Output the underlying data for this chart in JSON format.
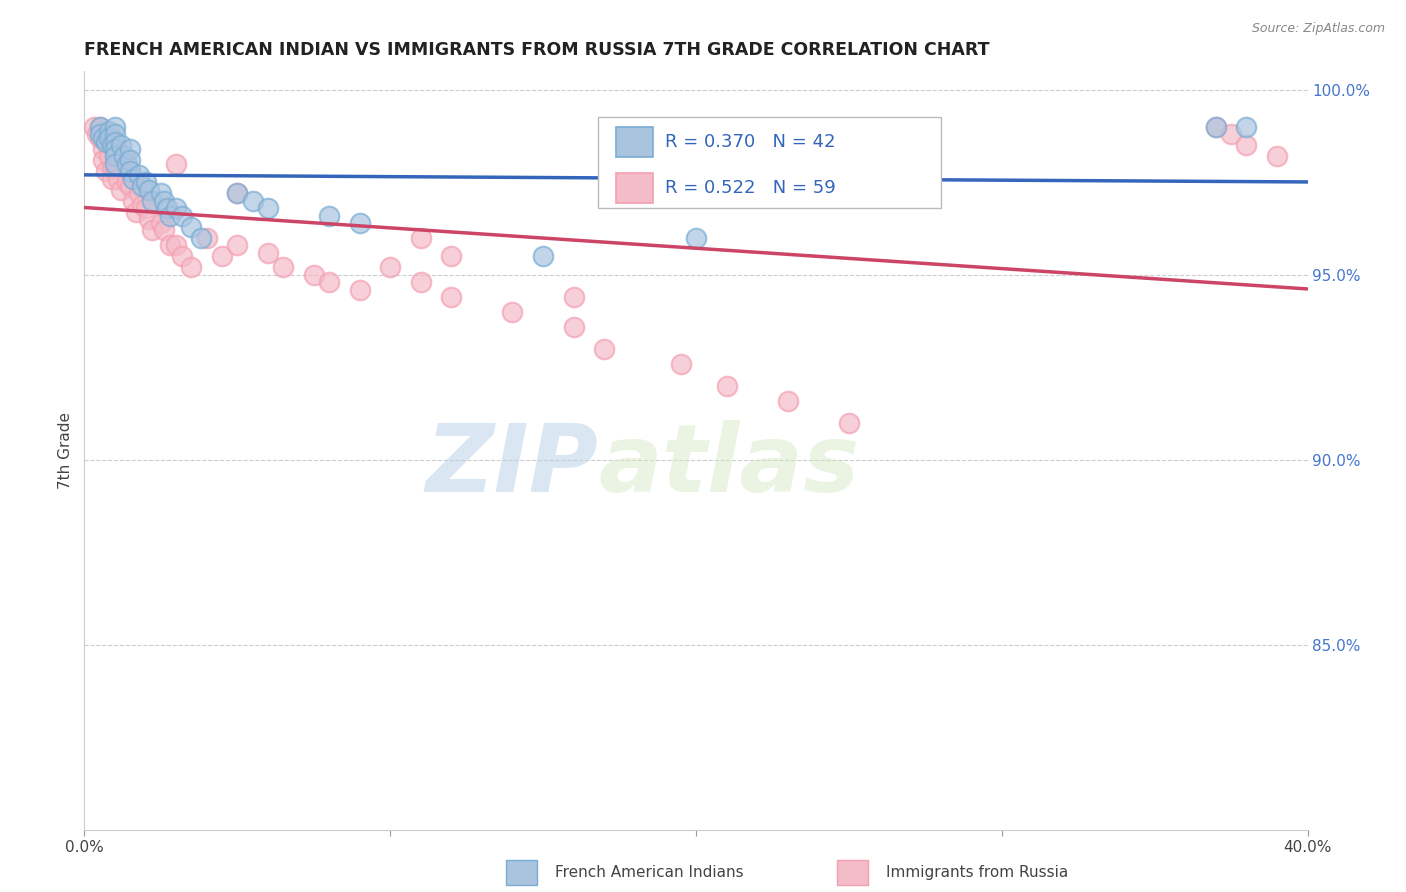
{
  "title": "FRENCH AMERICAN INDIAN VS IMMIGRANTS FROM RUSSIA 7TH GRADE CORRELATION CHART",
  "source": "Source: ZipAtlas.com",
  "ylabel": "7th Grade",
  "xlim": [
    0.0,
    0.4
  ],
  "ylim": [
    0.8,
    1.005
  ],
  "yticks": [
    1.0,
    0.95,
    0.9,
    0.85
  ],
  "ytick_labels": [
    "100.0%",
    "95.0%",
    "90.0%",
    "85.0%"
  ],
  "xticks": [
    0.0,
    0.1,
    0.2,
    0.3,
    0.4
  ],
  "xtick_labels": [
    "0.0%",
    "",
    "",
    "",
    "40.0%"
  ],
  "blue_r": 0.37,
  "blue_n": 42,
  "pink_r": 0.522,
  "pink_n": 59,
  "legend_label_blue": "French American Indians",
  "legend_label_pink": "Immigrants from Russia",
  "blue_color": "#7aadd4",
  "pink_color": "#f4a0b0",
  "blue_line_color": "#3366bb",
  "pink_line_color": "#cc4466",
  "blue_fill_color": "#aac4e0",
  "pink_fill_color": "#f4bbc8",
  "watermark_zip": "ZIP",
  "watermark_atlas": "atlas",
  "blue_x": [
    0.005,
    0.005,
    0.006,
    0.007,
    0.008,
    0.008,
    0.009,
    0.01,
    0.01,
    0.01,
    0.01,
    0.01,
    0.01,
    0.012,
    0.013,
    0.014,
    0.015,
    0.015,
    0.015,
    0.016,
    0.018,
    0.019,
    0.02,
    0.021,
    0.022,
    0.025,
    0.026,
    0.027,
    0.028,
    0.03,
    0.032,
    0.035,
    0.038,
    0.05,
    0.055,
    0.06,
    0.08,
    0.09,
    0.15,
    0.2,
    0.37,
    0.38
  ],
  "blue_y": [
    0.99,
    0.988,
    0.987,
    0.986,
    0.989,
    0.987,
    0.985,
    0.99,
    0.988,
    0.986,
    0.984,
    0.982,
    0.98,
    0.985,
    0.982,
    0.98,
    0.984,
    0.981,
    0.978,
    0.976,
    0.977,
    0.974,
    0.975,
    0.973,
    0.97,
    0.972,
    0.97,
    0.968,
    0.966,
    0.968,
    0.966,
    0.963,
    0.96,
    0.972,
    0.97,
    0.968,
    0.966,
    0.964,
    0.955,
    0.96,
    0.99,
    0.99
  ],
  "pink_x": [
    0.003,
    0.004,
    0.005,
    0.005,
    0.006,
    0.006,
    0.007,
    0.008,
    0.008,
    0.009,
    0.009,
    0.01,
    0.01,
    0.01,
    0.011,
    0.012,
    0.014,
    0.015,
    0.015,
    0.016,
    0.017,
    0.018,
    0.019,
    0.02,
    0.021,
    0.022,
    0.025,
    0.026,
    0.028,
    0.03,
    0.032,
    0.035,
    0.04,
    0.045,
    0.05,
    0.06,
    0.065,
    0.075,
    0.08,
    0.09,
    0.1,
    0.11,
    0.12,
    0.14,
    0.16,
    0.17,
    0.195,
    0.21,
    0.23,
    0.25,
    0.03,
    0.05,
    0.11,
    0.12,
    0.16,
    0.37,
    0.375,
    0.38,
    0.39
  ],
  "pink_y": [
    0.99,
    0.988,
    0.99,
    0.987,
    0.984,
    0.981,
    0.978,
    0.985,
    0.982,
    0.979,
    0.976,
    0.985,
    0.982,
    0.979,
    0.976,
    0.973,
    0.975,
    0.978,
    0.974,
    0.97,
    0.967,
    0.972,
    0.969,
    0.968,
    0.965,
    0.962,
    0.964,
    0.962,
    0.958,
    0.958,
    0.955,
    0.952,
    0.96,
    0.955,
    0.958,
    0.956,
    0.952,
    0.95,
    0.948,
    0.946,
    0.952,
    0.948,
    0.944,
    0.94,
    0.936,
    0.93,
    0.926,
    0.92,
    0.916,
    0.91,
    0.98,
    0.972,
    0.96,
    0.955,
    0.944,
    0.99,
    0.988,
    0.985,
    0.982
  ]
}
